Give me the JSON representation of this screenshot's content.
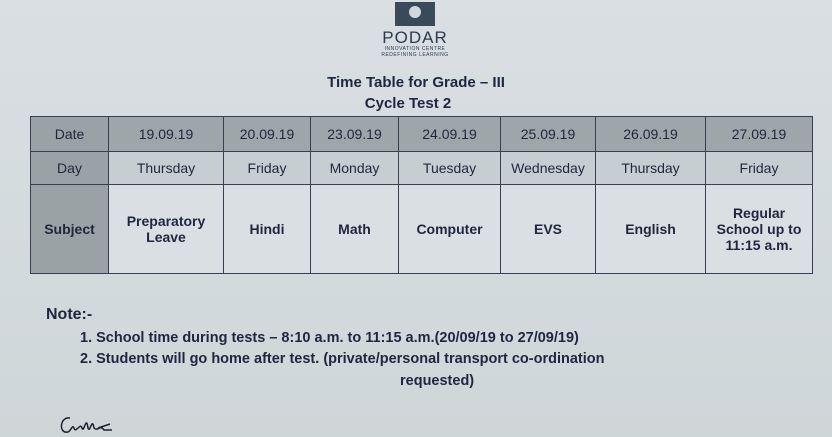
{
  "logo": {
    "name": "PODAR",
    "subtitle": "INNOVATION CENTRE",
    "tagline": "REDEFINING LEARNING"
  },
  "title": "Time Table for Grade – III",
  "subtitle": "Cycle Test 2",
  "table": {
    "row_labels": [
      "Date",
      "Day",
      "Subject"
    ],
    "dates": [
      "19.09.19",
      "20.09.19",
      "23.09.19",
      "24.09.19",
      "25.09.19",
      "26.09.19",
      "27.09.19"
    ],
    "days": [
      "Thursday",
      "Friday",
      "Monday",
      "Tuesday",
      "Wednesday",
      "Thursday",
      "Friday"
    ],
    "subjects": [
      "Preparatory Leave",
      "Hindi",
      "Math",
      "Computer",
      "EVS",
      "English",
      "Regular School up to 11:15 a.m."
    ]
  },
  "notes": {
    "heading": "Note:-",
    "items": [
      "1.  School time during tests – 8:10 a.m. to 11:15 a.m.(20/09/19 to 27/09/19)",
      "2.  Students will go home after test. (private/personal transport co-ordination"
    ],
    "continuation": "requested)"
  }
}
